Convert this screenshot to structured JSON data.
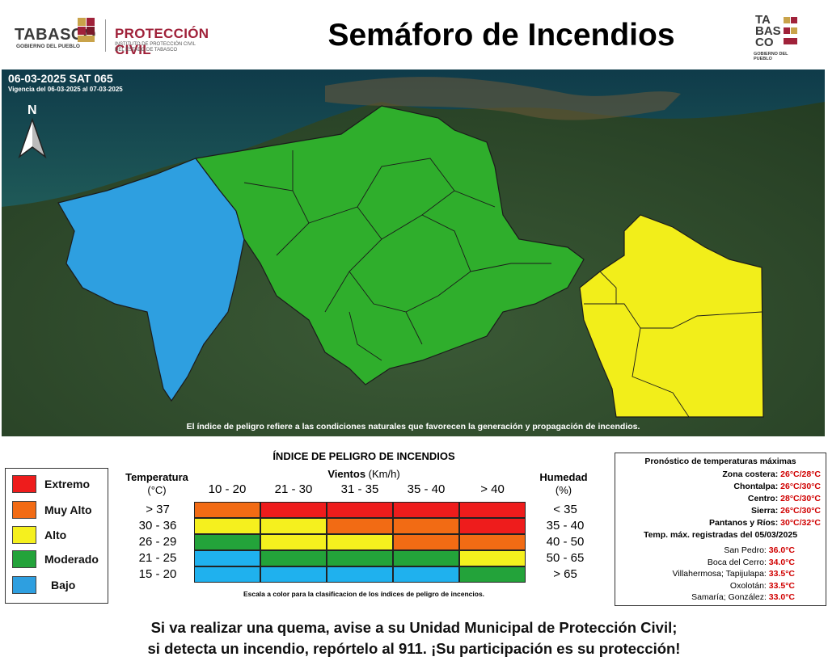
{
  "header": {
    "logo_left_brand": "TABASCO",
    "logo_left_sub": "GOBIERNO DEL PUEBLO",
    "logo_pc_title": "PROTECCIÓN CIVIL",
    "logo_pc_sub1": "INSTITUTO DE PROTECCIÓN CIVIL",
    "logo_pc_sub2": "DEL ESTADO DE TABASCO",
    "title": "Semáforo de Incendios",
    "logo_right_l1": "TA",
    "logo_right_l2": "BAS",
    "logo_right_l3": "CO",
    "logo_right_sub": "GOBIERNO DEL PUEBLO"
  },
  "map": {
    "bulletin": "06-03-2025 SAT 065",
    "validity": "Vigencia del 06-03-2025 al 07-03-2025",
    "north": "N",
    "note": "El índice de peligro refiere a las condiciones naturales que favorecen la generación y propagación de incendios.",
    "colors": {
      "bajo": "#2e9fe0",
      "moderado": "#2fae2c",
      "alto": "#f2ee1a"
    }
  },
  "legend": {
    "items": [
      {
        "label": "Extremo",
        "color": "#ee1c1c"
      },
      {
        "label": "Muy Alto",
        "color": "#f26b14"
      },
      {
        "label": "Alto",
        "color": "#f5f01e"
      },
      {
        "label": "Moderado",
        "color": "#23a33a"
      },
      {
        "label": "Bajo",
        "color": "#2e9fe0"
      }
    ]
  },
  "index": {
    "title": "ÍNDICE DE PELIGRO DE INCENDIOS",
    "temp_header": "Temperatura",
    "temp_unit": "(°C)",
    "wind_header": "Vientos",
    "wind_unit": "(Km/h)",
    "hum_header": "Humedad",
    "hum_unit": "(%)",
    "wind_cols": [
      "10 - 20",
      "21 - 30",
      "31 - 35",
      "35 - 40",
      "> 40"
    ],
    "temp_rows": [
      "> 37",
      "30 - 36",
      "26 - 29",
      "21 - 25",
      "15 - 20"
    ],
    "hum_rows": [
      "< 35",
      "35 - 40",
      "40 - 50",
      "50 - 65",
      "> 65"
    ],
    "grid": [
      [
        "#f26b14",
        "#ee1c1c",
        "#ee1c1c",
        "#ee1c1c",
        "#ee1c1c"
      ],
      [
        "#f5f01e",
        "#f5f01e",
        "#f26b14",
        "#f26b14",
        "#ee1c1c"
      ],
      [
        "#23a33a",
        "#f5f01e",
        "#f5f01e",
        "#f26b14",
        "#f26b14"
      ],
      [
        "#1fb1ee",
        "#23a33a",
        "#23a33a",
        "#23a33a",
        "#f5f01e"
      ],
      [
        "#1fb1ee",
        "#1fb1ee",
        "#1fb1ee",
        "#1fb1ee",
        "#23a33a"
      ]
    ],
    "scale_note": "Escala a color para la clasificacion de los índices de peligro de incencios."
  },
  "forecast": {
    "title": "Pronóstico de temperaturas máximas",
    "regions": [
      {
        "name": "Zona costera:",
        "value": "26°C/28°C"
      },
      {
        "name": "Chontalpa:",
        "value": "26°C/30°C"
      },
      {
        "name": "Centro:",
        "value": "28°C/30°C"
      },
      {
        "name": "Sierra:",
        "value": "26°C/30°C"
      },
      {
        "name": "Pantanos y Ríos:",
        "value": "30°C/32°C"
      }
    ],
    "recorded_title": "Temp. máx. registradas del 05/03/2025",
    "recorded": [
      {
        "name": "San Pedro:",
        "value": "36.0°C"
      },
      {
        "name": "Boca del Cerro:",
        "value": "34.0°C"
      },
      {
        "name": "Villahermosa; Tapijulapa:",
        "value": "33.5°C"
      },
      {
        "name": "Oxolotán:",
        "value": "33.5°C"
      },
      {
        "name": "Samaría; González:",
        "value": "33.0°C"
      }
    ]
  },
  "footer": {
    "line1": "Si va realizar una quema, avise a su Unidad Municipal de Protección Civil;",
    "line2": "si detecta un incendio, repórtelo al 911. ¡Su participación es su protección!"
  }
}
